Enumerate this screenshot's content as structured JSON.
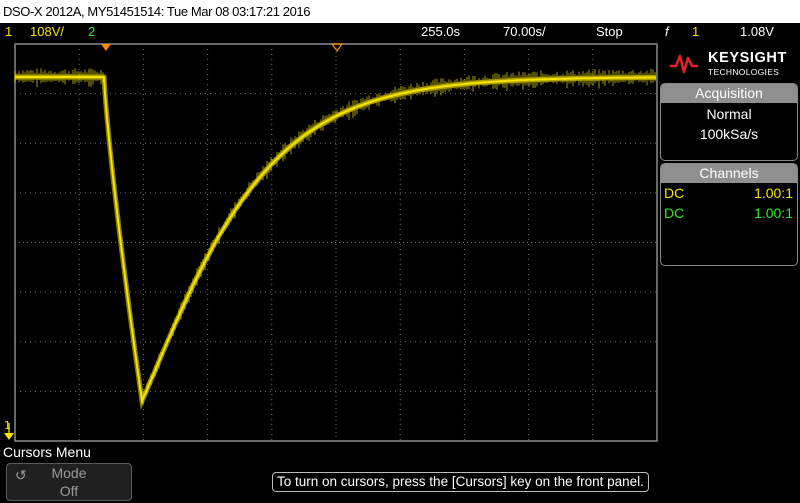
{
  "title_bar": {
    "text": "DSO-X 2012A, MY51451514: Tue Mar 08 03:17:21 2016"
  },
  "status": {
    "ch1_num": "1",
    "ch1_scale": "108V/",
    "ch2_num": "2",
    "time_delay": "255.0s",
    "time_scale": "70.00s/",
    "run_state": "Stop",
    "trigger_glyph": "f",
    "trigger_source": "1",
    "trigger_level": "1.08V"
  },
  "logo": {
    "brand": "KEYSIGHT",
    "sub": "TECHNOLOGIES"
  },
  "acquisition": {
    "title": "Acquisition",
    "mode": "Normal",
    "rate": "100kSa/s"
  },
  "channels": {
    "title": "Channels",
    "rows": [
      {
        "coupling": "DC",
        "probe": "1.00:1",
        "color": "#f5e400"
      },
      {
        "coupling": "DC",
        "probe": "1.00:1",
        "color": "#2ee62e"
      }
    ]
  },
  "menu": {
    "title": "Cursors Menu"
  },
  "softkey": {
    "label": "Mode",
    "value": "Off"
  },
  "hint": {
    "text": "To turn on cursors, press the [Cursors] key on the front panel."
  },
  "ground_marker": {
    "label": "1"
  },
  "colors": {
    "ch1": "#f5e400",
    "ch2": "#2ee62e",
    "trigger_marker": "#ff8a00",
    "grid": "#6e6e6e"
  }
}
